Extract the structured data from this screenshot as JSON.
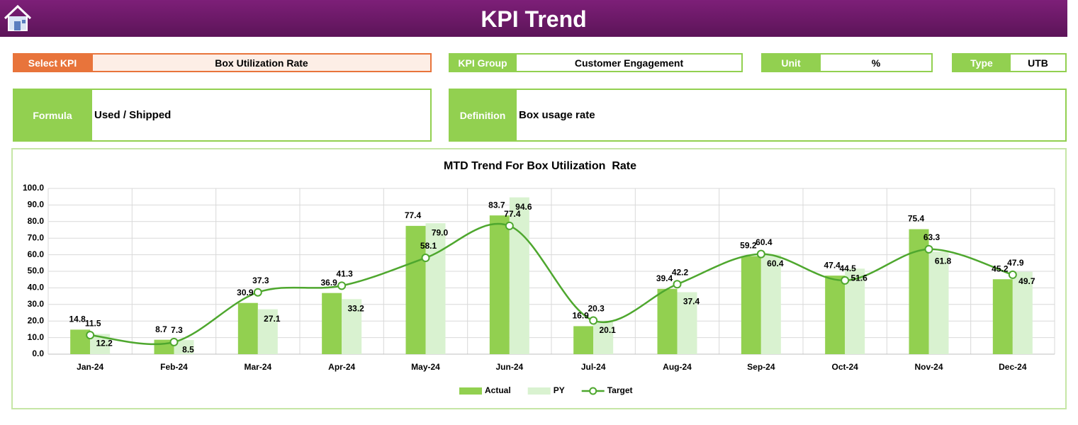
{
  "header": {
    "title": "KPI Trend"
  },
  "fields": {
    "select_kpi": {
      "label": "Select KPI",
      "value": "Box Utilization Rate"
    },
    "kpi_group": {
      "label": "KPI Group",
      "value": "Customer Engagement"
    },
    "unit": {
      "label": "Unit",
      "value": "%"
    },
    "type": {
      "label": "Type",
      "value": "UTB"
    },
    "formula": {
      "label": "Formula",
      "value": "Used / Shipped"
    },
    "definition": {
      "label": "Definition",
      "value": "Box usage rate"
    }
  },
  "chart_data": {
    "type": "bar_line",
    "title": "MTD Trend For Box Utilization  Rate",
    "categories": [
      "Jan-24",
      "Feb-24",
      "Mar-24",
      "Apr-24",
      "May-24",
      "Jun-24",
      "Jul-24",
      "Aug-24",
      "Sep-24",
      "Oct-24",
      "Nov-24",
      "Dec-24"
    ],
    "series": [
      {
        "name": "Actual",
        "color": "#92d050",
        "kind": "bar",
        "values": [
          14.8,
          8.7,
          30.9,
          36.9,
          77.4,
          83.7,
          16.9,
          39.4,
          59.2,
          47.4,
          75.4,
          45.2
        ],
        "value_labels": [
          "14.8",
          "8.7",
          "30.9",
          "36.9",
          "77.4",
          "83.7",
          "16.9",
          "39.4",
          "59.2",
          "47.4",
          "75.4",
          "45.2"
        ]
      },
      {
        "name": "PY",
        "color": "#d9f2d0",
        "kind": "bar",
        "values": [
          12.2,
          8.5,
          27.1,
          33.2,
          79,
          94.6,
          20.1,
          37.4,
          60.4,
          51.6,
          61.8,
          49.7
        ],
        "value_labels": [
          "12.2",
          "8.5",
          "27.1",
          "33.2",
          "79.0",
          "94.6",
          "20.1",
          "37.4",
          "60.4",
          "51.6",
          "61.8",
          "49.7"
        ]
      },
      {
        "name": "Target",
        "color": "#4ea72e",
        "kind": "line",
        "values": [
          11.5,
          7.3,
          37.3,
          41.3,
          58.1,
          77.4,
          20.3,
          42.2,
          60.4,
          44.5,
          63.3,
          47.9
        ],
        "value_labels": [
          "11.5",
          "7.3",
          "37.3",
          "41.3",
          "58.1",
          "77.4",
          "20.3",
          "42.2",
          "60.4",
          "44.5",
          "63.3",
          "47.9"
        ]
      }
    ],
    "ylim": [
      0,
      100
    ],
    "yticks": [
      {
        "value": 0,
        "label": "0.0"
      },
      {
        "value": 10,
        "label": "10.0"
      },
      {
        "value": 20,
        "label": "20.0"
      },
      {
        "value": 30,
        "label": "30.0"
      },
      {
        "value": 40,
        "label": "40.0"
      },
      {
        "value": 50,
        "label": "50.0"
      },
      {
        "value": 60,
        "label": "60.0"
      },
      {
        "value": 70,
        "label": "70.0"
      },
      {
        "value": 80,
        "label": "80.0"
      },
      {
        "value": 90,
        "label": "90.0"
      },
      {
        "value": 100,
        "label": "100.0"
      }
    ],
    "grid": true,
    "legend": "bottom"
  }
}
